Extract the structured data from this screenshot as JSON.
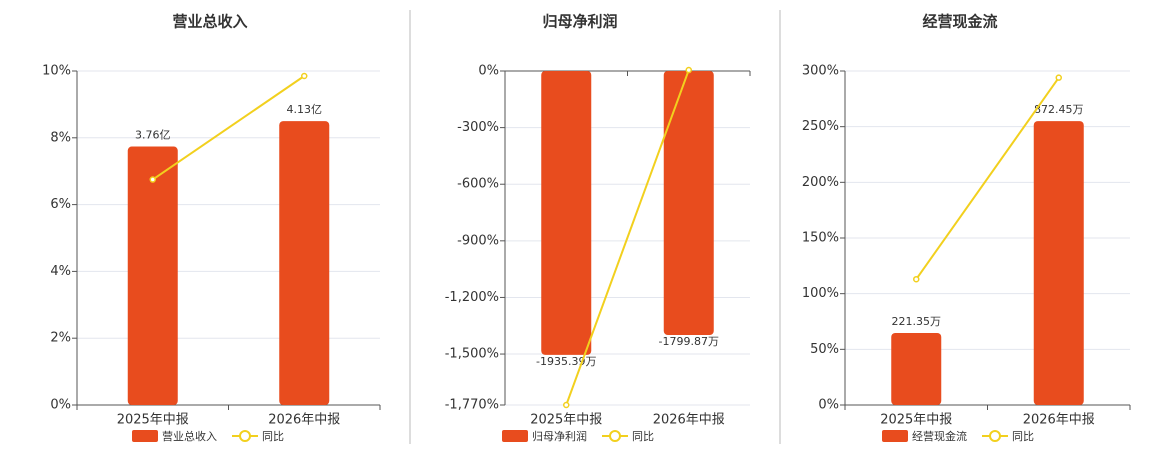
{
  "chart_data": [
    {
      "type": "bar-line",
      "title": "营业总收入",
      "categories": [
        "2025年中报",
        "2026年中报"
      ],
      "series": [
        {
          "name": "营业总收入",
          "color": "#e84c1e",
          "values": [
            3.76,
            4.13
          ],
          "value_labels": [
            "3.76亿",
            "4.13亿"
          ]
        },
        {
          "name": "同比",
          "color": "#f2d01e",
          "values": [
            6.75,
            9.85
          ]
        }
      ],
      "ylim": [
        0,
        10
      ],
      "yticks": [
        {
          "value": 0,
          "label": "0%"
        },
        {
          "value": 2,
          "label": "2%"
        },
        {
          "value": 4,
          "label": "4%"
        },
        {
          "value": 6,
          "label": "6%"
        },
        {
          "value": 8,
          "label": "8%"
        },
        {
          "value": 10,
          "label": "10%"
        }
      ],
      "grid": true
    },
    {
      "type": "bar-line",
      "title": "归母净利润",
      "categories": [
        "2025年中报",
        "2026年中报"
      ],
      "series": [
        {
          "name": "归母净利润",
          "color": "#e84c1e",
          "values": [
            -1935.39,
            -1799.87
          ],
          "value_labels": [
            "-1935.39万",
            "-1799.87万"
          ]
        },
        {
          "name": "同比",
          "color": "#f2d01e",
          "values": [
            -1770,
            5
          ]
        }
      ],
      "ylim": [
        -1770,
        0
      ],
      "yticks": [
        {
          "value": 0,
          "label": "0%"
        },
        {
          "value": -300,
          "label": "-300%"
        },
        {
          "value": -600,
          "label": "-600%"
        },
        {
          "value": -900,
          "label": "-900%"
        },
        {
          "value": -1200,
          "label": "-1,200%"
        },
        {
          "value": -1500,
          "label": "-1,500%"
        },
        {
          "value": -1770,
          "label": "-1,770%"
        }
      ],
      "grid": true
    },
    {
      "type": "bar-line",
      "title": "经营现金流",
      "categories": [
        "2025年中报",
        "2026年中报"
      ],
      "series": [
        {
          "name": "经营现金流",
          "color": "#e84c1e",
          "values": [
            221.35,
            872.45
          ],
          "value_labels": [
            "221.35万",
            "872.45万"
          ]
        },
        {
          "name": "同比",
          "color": "#f2d01e",
          "values": [
            113,
            294
          ]
        }
      ],
      "ylim": [
        0,
        300
      ],
      "yticks": [
        {
          "value": 0,
          "label": "0%"
        },
        {
          "value": 50,
          "label": "50%"
        },
        {
          "value": 100,
          "label": "100%"
        },
        {
          "value": 150,
          "label": "150%"
        },
        {
          "value": 200,
          "label": "200%"
        },
        {
          "value": 250,
          "label": "250%"
        },
        {
          "value": 300,
          "label": "300%"
        }
      ],
      "grid": true
    }
  ]
}
